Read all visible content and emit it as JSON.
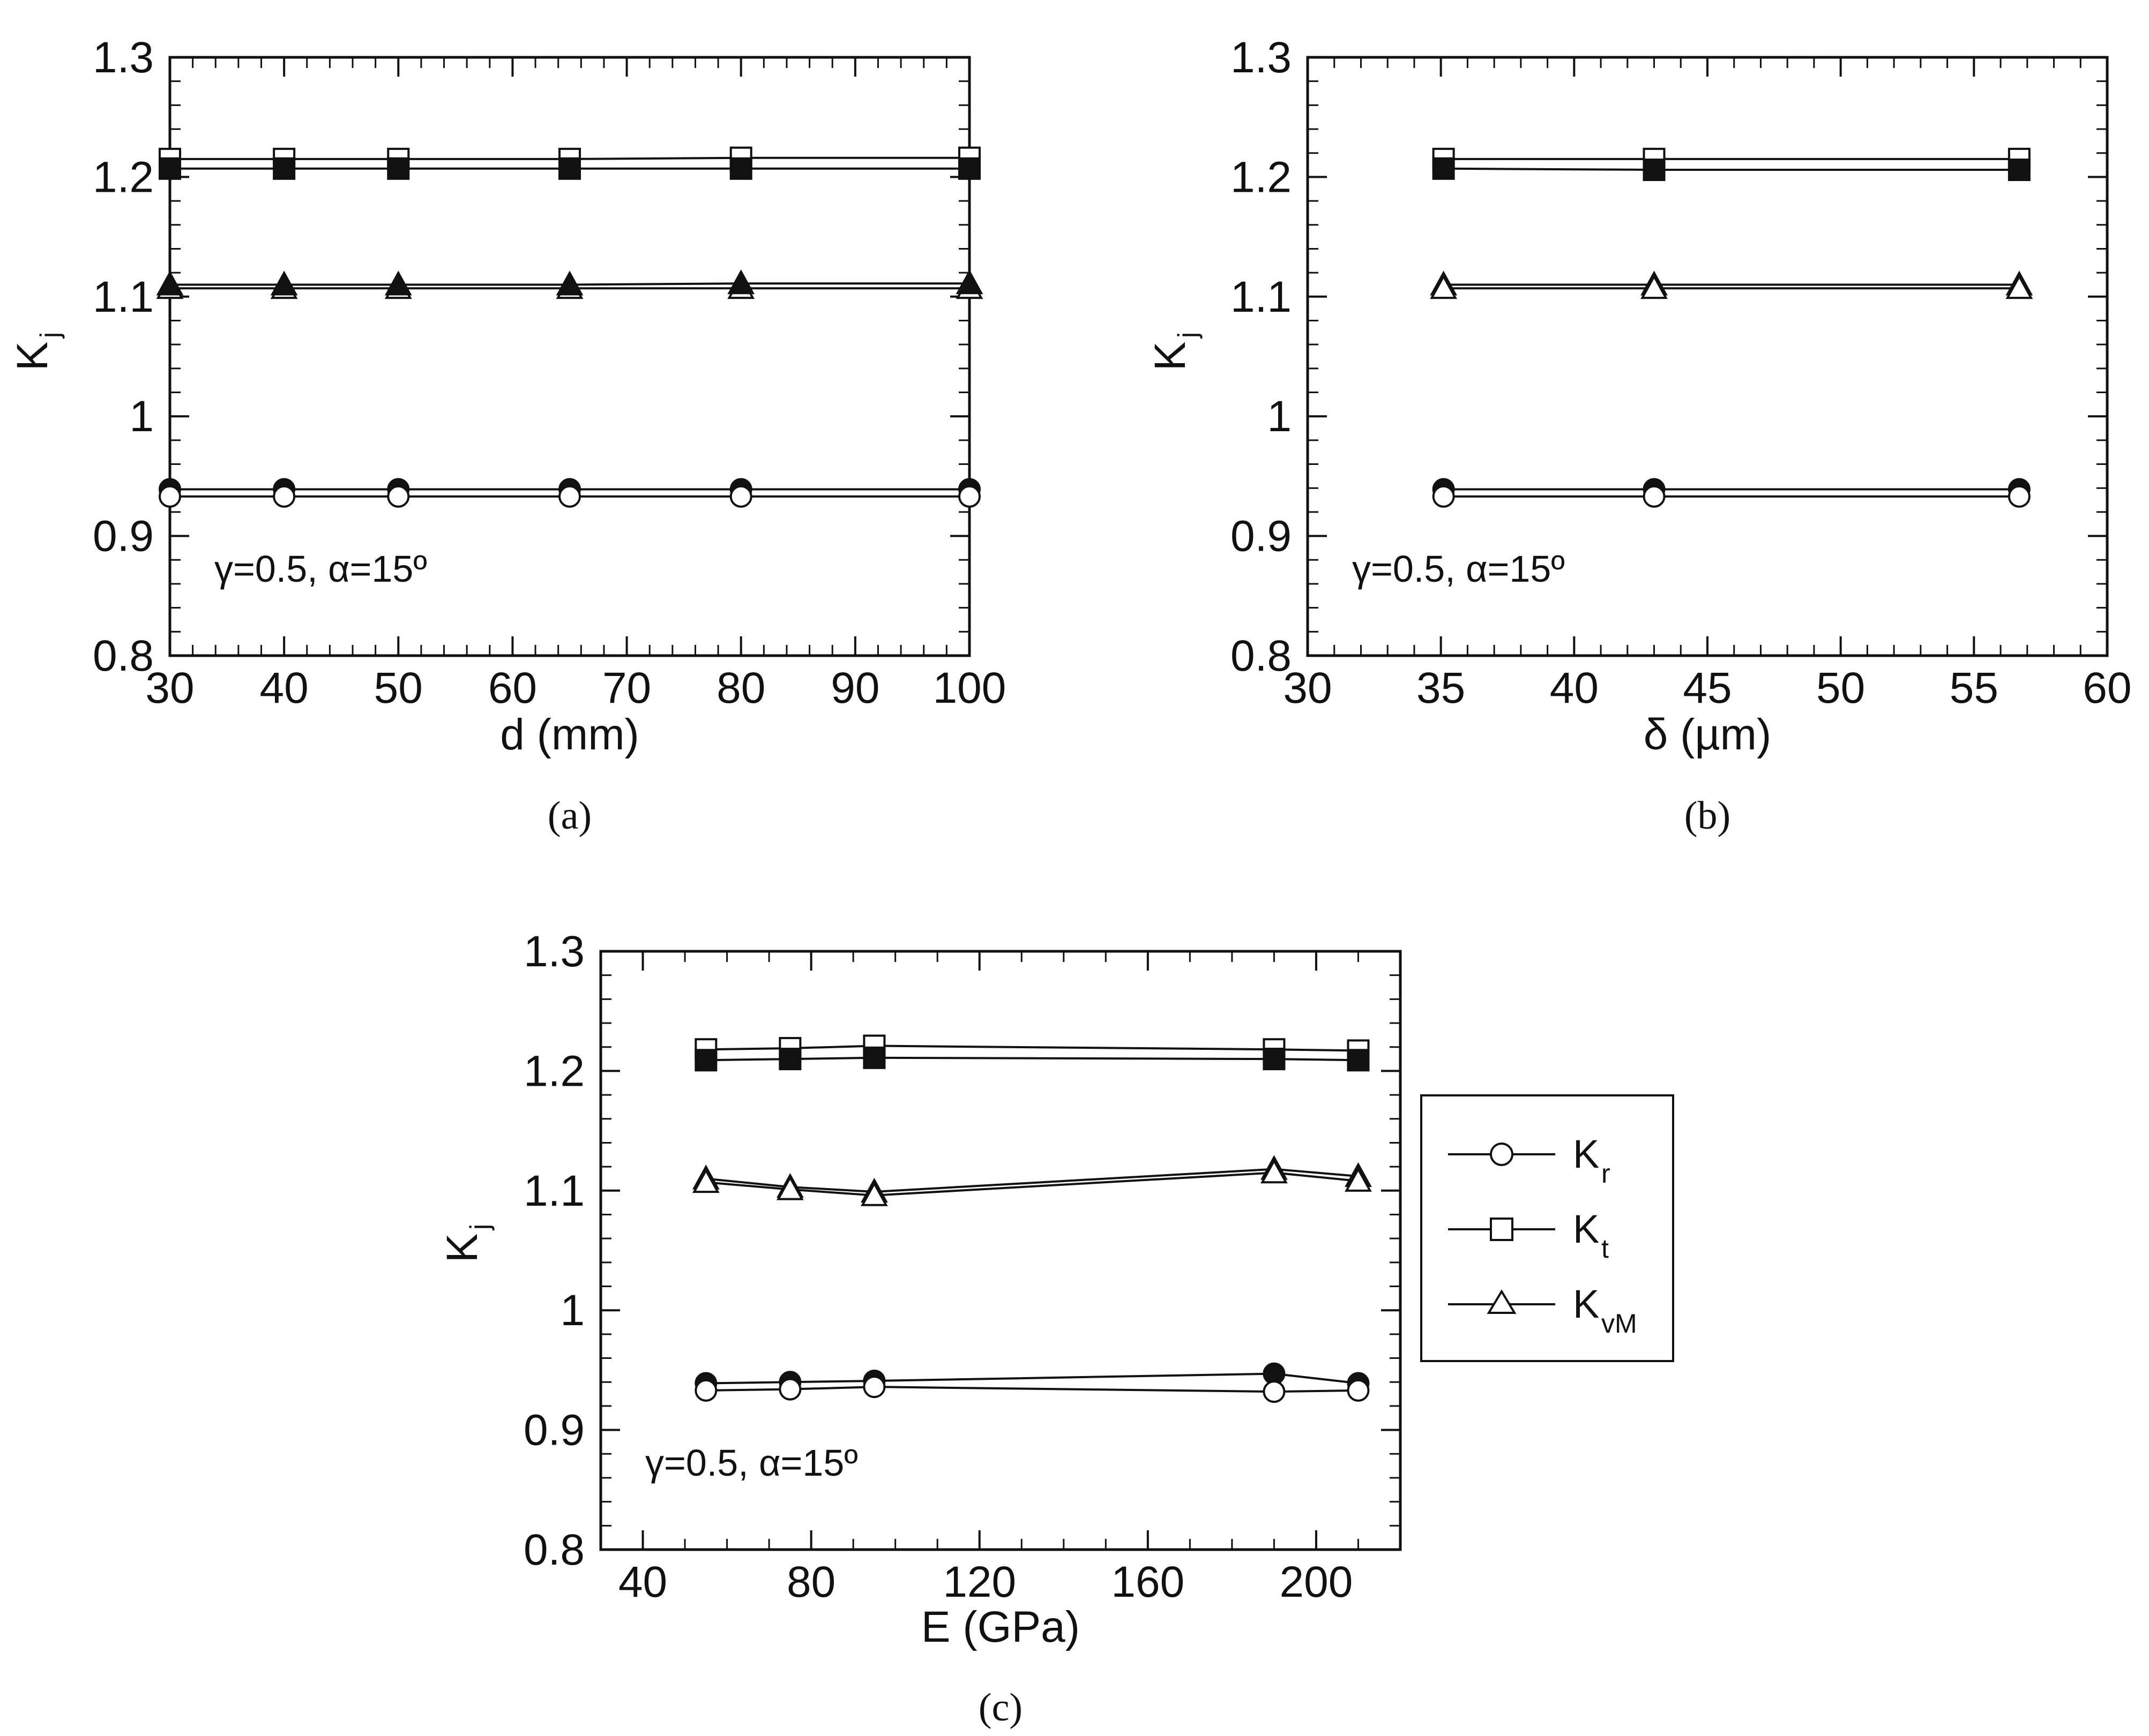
{
  "chart_data": [
    {
      "type": "line",
      "panel_label": "(a)",
      "xlabel": "d (mm)",
      "ylabel": "K",
      "ylabel_sub": "j",
      "xlim": [
        30,
        100
      ],
      "ylim": [
        0.8,
        1.3
      ],
      "xticks": [
        "30",
        "40",
        "50",
        "60",
        "70",
        "80",
        "90",
        "100"
      ],
      "yticks": [
        "0.8",
        "0.9",
        "1",
        "1.1",
        "1.2",
        "1.3"
      ],
      "annotation": "γ=0.5, α=15º",
      "x": [
        30,
        40,
        50,
        65,
        80,
        100
      ],
      "series": [
        {
          "name": "Kt",
          "marker": "square",
          "fill": "open",
          "values": [
            1.215,
            1.215,
            1.215,
            1.215,
            1.216,
            1.216
          ]
        },
        {
          "name": "Kt",
          "marker": "square",
          "fill": "filled",
          "values": [
            1.207,
            1.207,
            1.207,
            1.207,
            1.207,
            1.207
          ]
        },
        {
          "name": "KvM",
          "marker": "triangle",
          "fill": "open",
          "values": [
            1.107,
            1.107,
            1.107,
            1.107,
            1.107,
            1.107
          ]
        },
        {
          "name": "KvM",
          "marker": "triangle",
          "fill": "filled",
          "values": [
            1.11,
            1.11,
            1.11,
            1.11,
            1.111,
            1.111
          ]
        },
        {
          "name": "Kr",
          "marker": "circle",
          "fill": "filled",
          "values": [
            0.939,
            0.939,
            0.939,
            0.939,
            0.939,
            0.939
          ]
        },
        {
          "name": "Kr",
          "marker": "circle",
          "fill": "open",
          "values": [
            0.933,
            0.933,
            0.933,
            0.933,
            0.933,
            0.933
          ]
        }
      ]
    },
    {
      "type": "line",
      "panel_label": "(b)",
      "xlabel": "δ (µm)",
      "ylabel": "K",
      "ylabel_sub": "j",
      "xlim": [
        30,
        60
      ],
      "ylim": [
        0.8,
        1.3
      ],
      "xticks": [
        "30",
        "35",
        "40",
        "45",
        "50",
        "55",
        "60"
      ],
      "yticks": [
        "0.8",
        "0.9",
        "1",
        "1.1",
        "1.2",
        "1.3"
      ],
      "annotation": "γ=0.5, α=15º",
      "x": [
        35.1,
        43,
        56.7
      ],
      "series": [
        {
          "name": "Kt",
          "marker": "square",
          "fill": "open",
          "values": [
            1.215,
            1.215,
            1.215
          ]
        },
        {
          "name": "Kt",
          "marker": "square",
          "fill": "filled",
          "values": [
            1.207,
            1.206,
            1.206
          ]
        },
        {
          "name": "KvM",
          "marker": "triangle",
          "fill": "filled",
          "values": [
            1.11,
            1.11,
            1.11
          ]
        },
        {
          "name": "KvM",
          "marker": "triangle",
          "fill": "open",
          "values": [
            1.107,
            1.107,
            1.107
          ]
        },
        {
          "name": "Kr",
          "marker": "circle",
          "fill": "filled",
          "values": [
            0.939,
            0.939,
            0.939
          ]
        },
        {
          "name": "Kr",
          "marker": "circle",
          "fill": "open",
          "values": [
            0.933,
            0.933,
            0.933
          ]
        }
      ]
    },
    {
      "type": "line",
      "panel_label": "(c)",
      "xlabel": "E (GPa)",
      "ylabel": "K",
      "ylabel_sub": "j",
      "xlim": [
        30,
        220
      ],
      "ylim": [
        0.8,
        1.3
      ],
      "xticks": [
        "40",
        "80",
        "120",
        "160",
        "200"
      ],
      "yticks": [
        "0.8",
        "0.9",
        "1",
        "1.1",
        "1.2",
        "1.3"
      ],
      "annotation": "γ=0.5, α=15º",
      "x": [
        55,
        75,
        95,
        190,
        210
      ],
      "series": [
        {
          "name": "Kt",
          "marker": "square",
          "fill": "open",
          "values": [
            1.218,
            1.219,
            1.221,
            1.218,
            1.217
          ]
        },
        {
          "name": "Kt",
          "marker": "square",
          "fill": "filled",
          "values": [
            1.209,
            1.21,
            1.211,
            1.21,
            1.209
          ]
        },
        {
          "name": "KvM",
          "marker": "triangle",
          "fill": "filled",
          "values": [
            1.11,
            1.103,
            1.099,
            1.118,
            1.112
          ]
        },
        {
          "name": "KvM",
          "marker": "triangle",
          "fill": "open",
          "values": [
            1.107,
            1.101,
            1.096,
            1.115,
            1.108
          ]
        },
        {
          "name": "Kr",
          "marker": "circle",
          "fill": "filled",
          "values": [
            0.939,
            0.94,
            0.941,
            0.947,
            0.939
          ]
        },
        {
          "name": "Kr",
          "marker": "circle",
          "fill": "open",
          "values": [
            0.933,
            0.934,
            0.936,
            0.932,
            0.933
          ]
        }
      ],
      "legend": {
        "placement": "right",
        "entries": [
          {
            "symbol": "K",
            "sub": "r",
            "marker": "circle"
          },
          {
            "symbol": "K",
            "sub": "t",
            "marker": "square"
          },
          {
            "symbol": "K",
            "sub": "vM",
            "marker": "triangle"
          }
        ]
      }
    }
  ]
}
